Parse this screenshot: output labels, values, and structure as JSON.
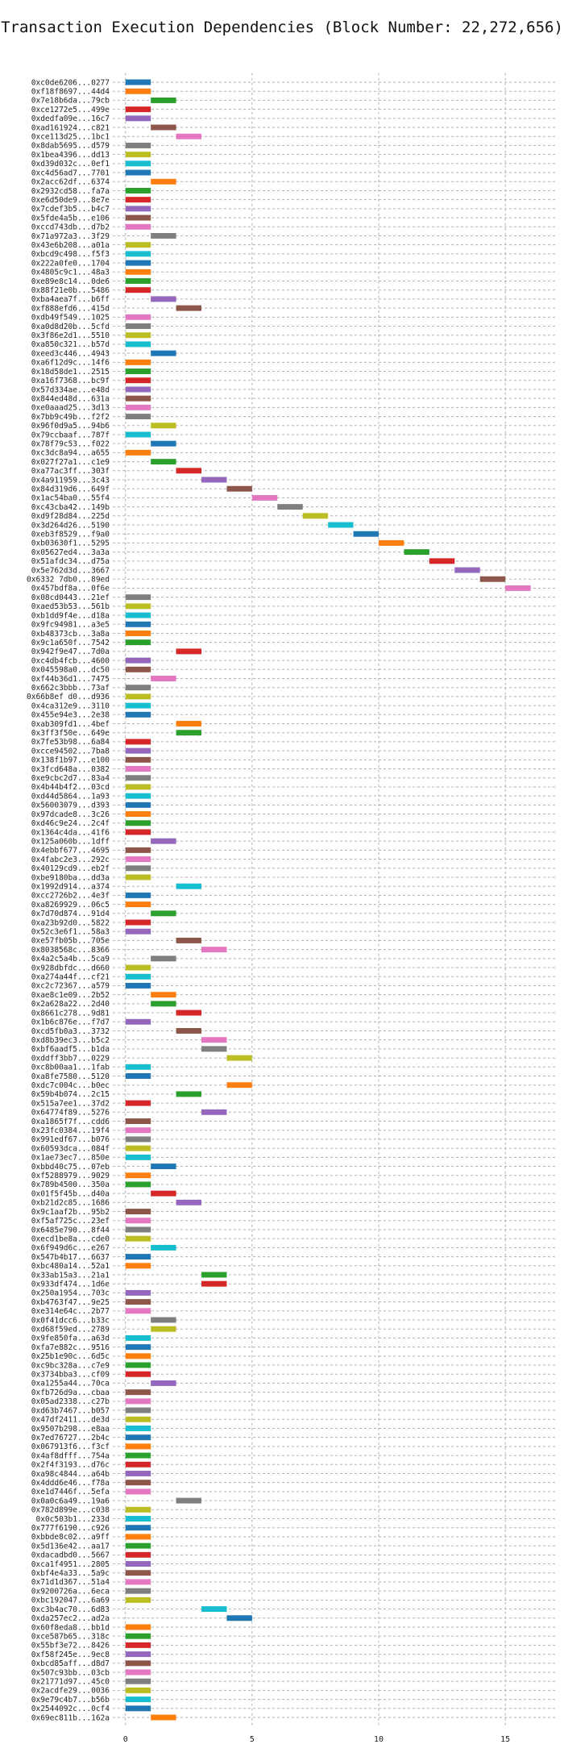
{
  "chart_data": {
    "type": "bar",
    "orientation": "horizontal-gantt",
    "title": "Transaction Execution Dependencies (Block Number: 22,272,656)",
    "xlabel": "",
    "ylabel": "",
    "xlim": [
      -0.5,
      17
    ],
    "x_ticks": [
      0,
      5,
      10,
      15
    ],
    "grid": "on, dashed, both axes",
    "legend": "none",
    "palette": [
      "#1f77b4",
      "#ff7f0e",
      "#2ca02c",
      "#d62728",
      "#9467bd",
      "#8c564b",
      "#e377c2",
      "#7f7f7f",
      "#bcbd22",
      "#17becf"
    ],
    "bar_duration": 1,
    "tasks": [
      {
        "label": "0xc0de6206...0277",
        "start": 0
      },
      {
        "label": "0xf18f8697...44d4",
        "start": 0
      },
      {
        "label": "0x7e18b6da...79cb",
        "start": 1
      },
      {
        "label": "0xce1272e5...499e",
        "start": 0
      },
      {
        "label": "0xdedfa09e...16c7",
        "start": 0
      },
      {
        "label": "0xad161924...c821",
        "start": 1
      },
      {
        "label": "0xce113d25...1bc1",
        "start": 2
      },
      {
        "label": "0x8dab5695...d579",
        "start": 0
      },
      {
        "label": "0x1bea4396...dd13",
        "start": 0
      },
      {
        "label": "0xd39d032c...0ef1",
        "start": 0
      },
      {
        "label": "0xc4d56ad7...7701",
        "start": 0
      },
      {
        "label": "0x2acc62df...6374",
        "start": 1
      },
      {
        "label": "0x2932cd58...fa7a",
        "start": 0
      },
      {
        "label": "0xe6d50de9...8e7e",
        "start": 0
      },
      {
        "label": "0x7cdef3b5...b4c7",
        "start": 0
      },
      {
        "label": "0x5fde4a5b...e106",
        "start": 0
      },
      {
        "label": "0xccd743db...d7b2",
        "start": 0
      },
      {
        "label": "0x71a972a3...3f29",
        "start": 1
      },
      {
        "label": "0x43e6b208...a01a",
        "start": 0
      },
      {
        "label": "0xbcd9c498...f5f3",
        "start": 0
      },
      {
        "label": "0x222a0fe0...1704",
        "start": 0
      },
      {
        "label": "0x4805c9c1...48a3",
        "start": 0
      },
      {
        "label": "0xe89e8c14...0de6",
        "start": 0
      },
      {
        "label": "0x88f21e0b...5486",
        "start": 0
      },
      {
        "label": "0xba4aea7f...b6ff",
        "start": 1
      },
      {
        "label": "0xf888efd6...415d",
        "start": 2
      },
      {
        "label": "0xdb49f549...1025",
        "start": 0
      },
      {
        "label": "0xa0d8d20b...5cfd",
        "start": 0
      },
      {
        "label": "0x3f86e2d1...5510",
        "start": 0
      },
      {
        "label": "0xa850c321...b57d",
        "start": 0
      },
      {
        "label": "0xeed3c446...4943",
        "start": 1
      },
      {
        "label": "0xa6f12d9c...14f6",
        "start": 0
      },
      {
        "label": "0x18d58de1...2515",
        "start": 0
      },
      {
        "label": "0xa16f7368...bc9f",
        "start": 0
      },
      {
        "label": "0x57d334ae...e48d",
        "start": 0
      },
      {
        "label": "0x844ed48d...631a",
        "start": 0
      },
      {
        "label": "0xe0aaad25...3d13",
        "start": 0
      },
      {
        "label": "0x7bb9c49b...f2f2",
        "start": 0
      },
      {
        "label": "0x96f0d9a5...94b6",
        "start": 1
      },
      {
        "label": "0x79ccbaaf...787f",
        "start": 0
      },
      {
        "label": "0x78f79c53...f022",
        "start": 1
      },
      {
        "label": "0xc3dc8a94...a655",
        "start": 0
      },
      {
        "label": "0x027f27a1...c1e9",
        "start": 1
      },
      {
        "label": "0xa77ac3ff...303f",
        "start": 2
      },
      {
        "label": "0x4a911959...3c43",
        "start": 3
      },
      {
        "label": "0x84d319d6...649f",
        "start": 4
      },
      {
        "label": "0x1ac54ba0...55f4",
        "start": 5
      },
      {
        "label": "0xc43cba42...149b",
        "start": 6
      },
      {
        "label": "0xd9f28d84...225d",
        "start": 7
      },
      {
        "label": "0x3d264d26...5190",
        "start": 8
      },
      {
        "label": "0xeb3f8529...f9a0",
        "start": 9
      },
      {
        "label": "0xb03630f1...5295",
        "start": 10
      },
      {
        "label": "0x05627ed4...3a3a",
        "start": 11
      },
      {
        "label": "0x51afdc34...d75a",
        "start": 12
      },
      {
        "label": "0x5e762d3d...3667",
        "start": 13
      },
      {
        "label": "0x6332 7db0...89ed",
        "start": 14
      },
      {
        "label": "0x457bdf8a...0f6e",
        "start": 15
      },
      {
        "label": "0x08cd0443...21ef",
        "start": 0
      },
      {
        "label": "0xaed53b53...561b",
        "start": 0
      },
      {
        "label": "0xb1dd9f4e...d18a",
        "start": 0
      },
      {
        "label": "0x9fc94981...a3e5",
        "start": 0
      },
      {
        "label": "0xb48373cb...3a8a",
        "start": 0
      },
      {
        "label": "0x9c1a650f...7542",
        "start": 0
      },
      {
        "label": "0x942f9e47...7d0a",
        "start": 2
      },
      {
        "label": "0xc4db4fcb...4600",
        "start": 0
      },
      {
        "label": "0x045598a0...dc50",
        "start": 0
      },
      {
        "label": "0xf44b36d1...7475",
        "start": 1
      },
      {
        "label": "0x662c3bbb...73af",
        "start": 0
      },
      {
        "label": "0x66b8ef d0...d936",
        "start": 0
      },
      {
        "label": "0x4ca312e9...3110",
        "start": 0
      },
      {
        "label": "0x455e94e3...2e38",
        "start": 0
      },
      {
        "label": "0xab309fd1...4bef",
        "start": 2
      },
      {
        "label": "0x3ff3f50e...649e",
        "start": 2
      },
      {
        "label": "0x7fe53b98...6a84",
        "start": 0
      },
      {
        "label": "0xcce94502...7ba8",
        "start": 0
      },
      {
        "label": "0x138f1b97...e100",
        "start": 0
      },
      {
        "label": "0x3fcd648a...0382",
        "start": 0
      },
      {
        "label": "0xe9cbc2d7...83a4",
        "start": 0
      },
      {
        "label": "0x4b44b4f2...03cd",
        "start": 0
      },
      {
        "label": "0xd44d5864...1a93",
        "start": 0
      },
      {
        "label": "0x56003079...d393",
        "start": 0
      },
      {
        "label": "0x97dcade8...3c26",
        "start": 0
      },
      {
        "label": "0xd46c9e24...2c4f",
        "start": 0
      },
      {
        "label": "0x1364c4da...41f6",
        "start": 0
      },
      {
        "label": "0x125a060b...1dff",
        "start": 1
      },
      {
        "label": "0x4ebbf677...4695",
        "start": 0
      },
      {
        "label": "0x4fabc2e3...292c",
        "start": 0
      },
      {
        "label": "0x40129cd9...eb2f",
        "start": 0
      },
      {
        "label": "0xbe9180ba...dd3a",
        "start": 0
      },
      {
        "label": "0x1992d914...a374",
        "start": 2
      },
      {
        "label": "0xcc2726b2...4e3f",
        "start": 0
      },
      {
        "label": "0xa8269929...06c5",
        "start": 0
      },
      {
        "label": "0x7d70d874...91d4",
        "start": 1
      },
      {
        "label": "0xa23b92d0...5822",
        "start": 0
      },
      {
        "label": "0x52c3e6f1...58a3",
        "start": 0
      },
      {
        "label": "0xe57fb05b...705e",
        "start": 2
      },
      {
        "label": "0x8038568c...8366",
        "start": 3
      },
      {
        "label": "0x4a2c5a4b...5ca9",
        "start": 1
      },
      {
        "label": "0x928dbfdc...d660",
        "start": 0
      },
      {
        "label": "0xa274a44f...cf21",
        "start": 0
      },
      {
        "label": "0xc2c72367...a579",
        "start": 0
      },
      {
        "label": "0xae8c1e09...2b52",
        "start": 1
      },
      {
        "label": "0x2a628a22...2d40",
        "start": 1
      },
      {
        "label": "0x8661c278...9d81",
        "start": 2
      },
      {
        "label": "0x1b6c876e...f7d7",
        "start": 0
      },
      {
        "label": "0xcd5fb0a3...3732",
        "start": 2
      },
      {
        "label": "0xd8b39ec3...b5c2",
        "start": 3
      },
      {
        "label": "0xbf6aadf5...b1da",
        "start": 3
      },
      {
        "label": "0xddff3bb7...0229",
        "start": 4
      },
      {
        "label": "0xc8b00aa1...1fab",
        "start": 0
      },
      {
        "label": "0xa8fe7580...5120",
        "start": 0
      },
      {
        "label": "0xdc7c004c...b0ec",
        "start": 4
      },
      {
        "label": "0x59b4b074...2c15",
        "start": 2
      },
      {
        "label": "0x515a7ee1...37d2",
        "start": 0
      },
      {
        "label": "0x64774f89...5276",
        "start": 3
      },
      {
        "label": "0xa1865f7f...cdd6",
        "start": 0
      },
      {
        "label": "0x23fc0384...19f4",
        "start": 0
      },
      {
        "label": "0x991edf67...b076",
        "start": 0
      },
      {
        "label": "0x60593dca...084f",
        "start": 0
      },
      {
        "label": "0x1ae73ec7...850e",
        "start": 0
      },
      {
        "label": "0xbbd40c75...07eb",
        "start": 1
      },
      {
        "label": "0xf5288979...9029",
        "start": 0
      },
      {
        "label": "0x789b4500...350a",
        "start": 0
      },
      {
        "label": "0x01f5f45b...d40a",
        "start": 1
      },
      {
        "label": "0xb21d2c85...1686",
        "start": 2
      },
      {
        "label": "0x9c1aaf2b...95b2",
        "start": 0
      },
      {
        "label": "0xf5af725c...23ef",
        "start": 0
      },
      {
        "label": "0x6485e790...8f44",
        "start": 0
      },
      {
        "label": "0xecd1be8a...cde0",
        "start": 0
      },
      {
        "label": "0x6f949d6c...e267",
        "start": 1
      },
      {
        "label": "0x547b4b17...6637",
        "start": 0
      },
      {
        "label": "0xbc480a14...52a1",
        "start": 0
      },
      {
        "label": "0x33ab15a3...21a1",
        "start": 3
      },
      {
        "label": "0x933df474...1d6e",
        "start": 3
      },
      {
        "label": "0x250a1954...703c",
        "start": 0
      },
      {
        "label": "0xb4763f47...9e25",
        "start": 0
      },
      {
        "label": "0xe314e64c...2b77",
        "start": 0
      },
      {
        "label": "0x0f41dcc6...b33c",
        "start": 1
      },
      {
        "label": "0xd68f59ed...2789",
        "start": 1
      },
      {
        "label": "0x9fe850fa...a63d",
        "start": 0
      },
      {
        "label": "0xfa7e882c...9516",
        "start": 0
      },
      {
        "label": "0x25b1e90c...6d5c",
        "start": 0
      },
      {
        "label": "0xc9bc328a...c7e9",
        "start": 0
      },
      {
        "label": "0x3734bba3...cf09",
        "start": 0
      },
      {
        "label": "0xa1255a44...70ca",
        "start": 1
      },
      {
        "label": "0xfb726d9a...cbaa",
        "start": 0
      },
      {
        "label": "0x05ad2338...c27b",
        "start": 0
      },
      {
        "label": "0xd63b7467...b057",
        "start": 0
      },
      {
        "label": "0x47df2411...de3d",
        "start": 0
      },
      {
        "label": "0x9507b298...e8aa",
        "start": 0
      },
      {
        "label": "0x7ed76727...2b4c",
        "start": 0
      },
      {
        "label": "0x067913f6...f3cf",
        "start": 0
      },
      {
        "label": "0x4af8dfff...754a",
        "start": 0
      },
      {
        "label": "0x2f4f3193...d76c",
        "start": 0
      },
      {
        "label": "0xa98c4844...a64b",
        "start": 0
      },
      {
        "label": "0x4ddd6e46...f78a",
        "start": 0
      },
      {
        "label": "0xe1d7446f...5efa",
        "start": 0
      },
      {
        "label": "0x0a0c6a49...19a6",
        "start": 2
      },
      {
        "label": "0x782d899e...c038",
        "start": 0
      },
      {
        "label": "0x0c503b1...233d",
        "start": 0
      },
      {
        "label": "0x777f6190...c926",
        "start": 0
      },
      {
        "label": "0xbbde8c02...a9ff",
        "start": 0
      },
      {
        "label": "0x5d136e42...aa17",
        "start": 0
      },
      {
        "label": "0xdacadbd0...5667",
        "start": 0
      },
      {
        "label": "0xca1f4951...2805",
        "start": 0
      },
      {
        "label": "0xbf4e4a33...5a9c",
        "start": 0
      },
      {
        "label": "0x71d1d367...51a4",
        "start": 0
      },
      {
        "label": "0x9200726a...6eca",
        "start": 0
      },
      {
        "label": "0xbc192047...6a69",
        "start": 0
      },
      {
        "label": "0xc3b4ac70...6d83",
        "start": 3
      },
      {
        "label": "0xda257ec2...ad2a",
        "start": 4
      },
      {
        "label": "0x60f8eda8...bb1d",
        "start": 0
      },
      {
        "label": "0xce587b65...318c",
        "start": 0
      },
      {
        "label": "0x55bf3e72...8426",
        "start": 0
      },
      {
        "label": "0xf58f245e...9ec8",
        "start": 0
      },
      {
        "label": "0xbcd85aff...d8d7",
        "start": 0
      },
      {
        "label": "0x507c93bb...03cb",
        "start": 0
      },
      {
        "label": "0x21771d97...45c0",
        "start": 0
      },
      {
        "label": "0x2acdfe29...0036",
        "start": 0
      },
      {
        "label": "0x9e79c4b7...b56b",
        "start": 0
      },
      {
        "label": "0x2544092c...0cf4",
        "start": 0
      },
      {
        "label": "0x69ec811b...162a",
        "start": 1
      }
    ]
  }
}
